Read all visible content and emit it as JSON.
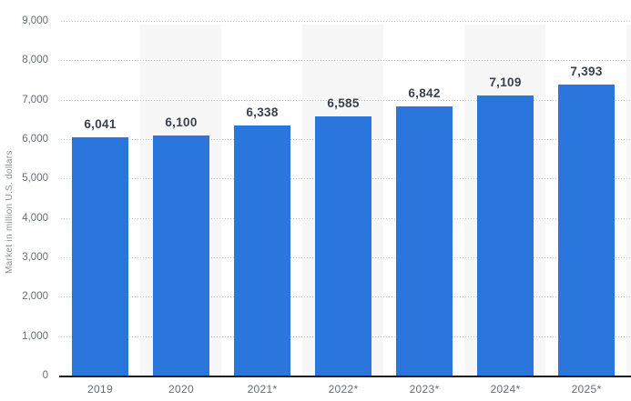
{
  "chart_data": {
    "type": "bar",
    "title": "",
    "xlabel": "",
    "ylabel": "Market in million U.S. dollars",
    "categories": [
      "2019",
      "2020",
      "2021*",
      "2022*",
      "2023*",
      "2024*",
      "2025*"
    ],
    "values": [
      6041,
      6100,
      6338,
      6585,
      6842,
      7109,
      7393
    ],
    "value_labels": [
      "6,041",
      "6,100",
      "6,338",
      "6,585",
      "6,842",
      "7,109",
      "7,393"
    ],
    "ylim": [
      0,
      9000
    ],
    "ytick_step": 1000,
    "ytick_labels": [
      "0",
      "1,000",
      "2,000",
      "3,000",
      "4,000",
      "5,000",
      "6,000",
      "7,000",
      "8,000",
      "9,000"
    ],
    "grid": "horizontal-dotted",
    "legend": "none",
    "colors": {
      "bar": "#2a76dd",
      "value_label": "#39424c",
      "tick_label": "#666e75",
      "axis_title": "#8a9097",
      "band": "#f7f7f7",
      "gridline": "#c9c9c9",
      "axis_line": "#1d1d1d",
      "background": "#ffffff"
    }
  }
}
